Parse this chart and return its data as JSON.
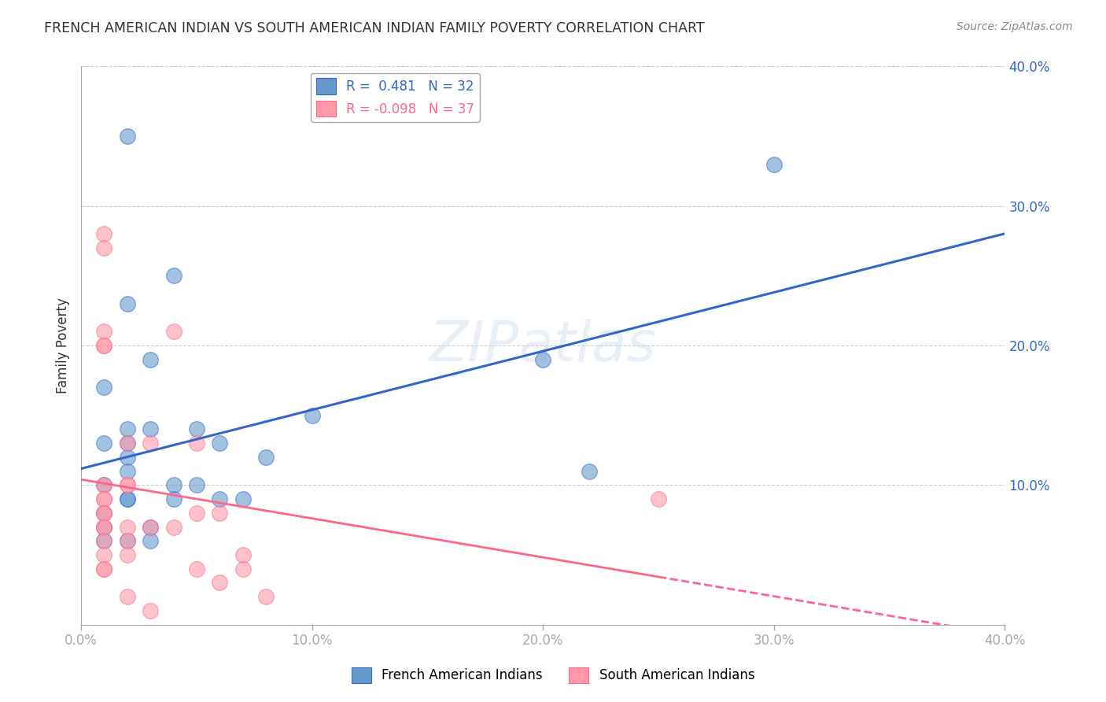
{
  "title": "FRENCH AMERICAN INDIAN VS SOUTH AMERICAN INDIAN FAMILY POVERTY CORRELATION CHART",
  "source": "Source: ZipAtlas.com",
  "ylabel": "Family Poverty",
  "watermark": "ZIPatlas",
  "xlim": [
    0.0,
    0.4
  ],
  "ylim": [
    0.0,
    0.4
  ],
  "xtick_labels": [
    "0.0%",
    "10.0%",
    "20.0%",
    "30.0%",
    "40.0%"
  ],
  "xtick_vals": [
    0.0,
    0.1,
    0.2,
    0.3,
    0.4
  ],
  "ytick_labels": [
    "40.0%",
    "30.0%",
    "20.0%",
    "10.0%"
  ],
  "ytick_vals": [
    0.4,
    0.3,
    0.2,
    0.1
  ],
  "blue_R": 0.481,
  "blue_N": 32,
  "pink_R": -0.098,
  "pink_N": 37,
  "blue_color": "#6699CC",
  "pink_color": "#FF99AA",
  "blue_line_color": "#3366CC",
  "pink_line_color": "#FF6688",
  "grid_color": "#CCCCCC",
  "background_color": "#FFFFFF",
  "blue_scatter_x": [
    0.02,
    0.04,
    0.02,
    0.03,
    0.01,
    0.02,
    0.03,
    0.02,
    0.01,
    0.02,
    0.02,
    0.01,
    0.04,
    0.05,
    0.04,
    0.06,
    0.07,
    0.1,
    0.05,
    0.06,
    0.02,
    0.02,
    0.01,
    0.01,
    0.03,
    0.02,
    0.01,
    0.2,
    0.3,
    0.22,
    0.08,
    0.03
  ],
  "blue_scatter_y": [
    0.35,
    0.25,
    0.23,
    0.19,
    0.17,
    0.14,
    0.14,
    0.13,
    0.13,
    0.12,
    0.11,
    0.1,
    0.1,
    0.1,
    0.09,
    0.09,
    0.09,
    0.15,
    0.14,
    0.13,
    0.09,
    0.09,
    0.08,
    0.07,
    0.07,
    0.06,
    0.06,
    0.19,
    0.33,
    0.11,
    0.12,
    0.06
  ],
  "pink_scatter_x": [
    0.01,
    0.01,
    0.01,
    0.01,
    0.01,
    0.01,
    0.02,
    0.02,
    0.01,
    0.01,
    0.01,
    0.01,
    0.01,
    0.01,
    0.02,
    0.03,
    0.03,
    0.02,
    0.04,
    0.05,
    0.01,
    0.02,
    0.01,
    0.02,
    0.05,
    0.06,
    0.07,
    0.07,
    0.06,
    0.08,
    0.01,
    0.05,
    0.04,
    0.25,
    0.01,
    0.02,
    0.03
  ],
  "pink_scatter_y": [
    0.28,
    0.27,
    0.21,
    0.2,
    0.2,
    0.1,
    0.1,
    0.1,
    0.09,
    0.09,
    0.08,
    0.08,
    0.07,
    0.07,
    0.07,
    0.07,
    0.13,
    0.13,
    0.21,
    0.13,
    0.06,
    0.06,
    0.05,
    0.05,
    0.08,
    0.08,
    0.05,
    0.04,
    0.03,
    0.02,
    0.04,
    0.04,
    0.07,
    0.09,
    0.04,
    0.02,
    0.01
  ]
}
